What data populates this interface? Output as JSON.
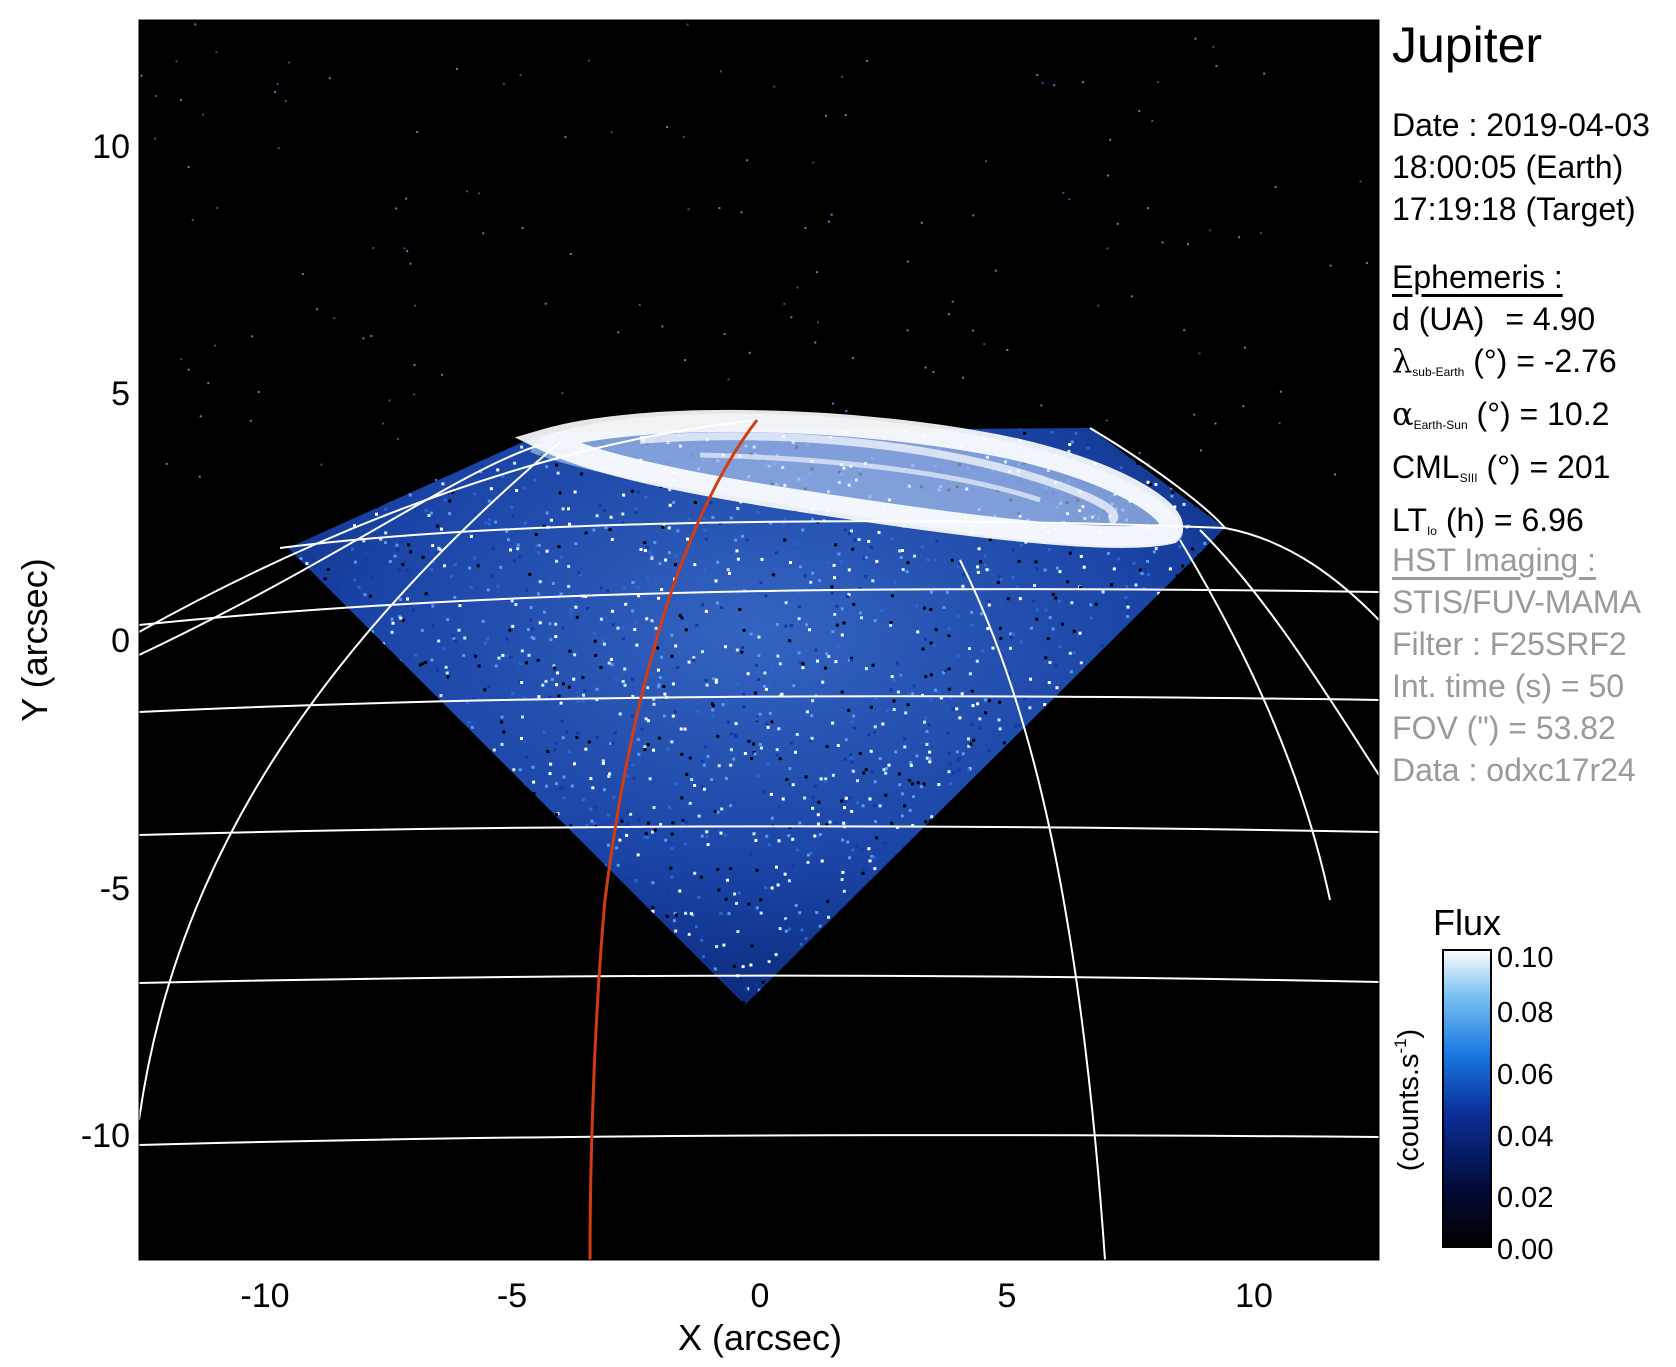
{
  "header": {
    "title": "Jupiter"
  },
  "date": {
    "line1": "Date : 2019-04-03",
    "line2": "18:00:05 (Earth)",
    "line3": "17:19:18 (Target)"
  },
  "ephemeris": {
    "heading": "Ephemeris :",
    "d_label": "d (UA)",
    "d_value": "= 4.90",
    "lat_symbol": "λ",
    "lat_sub": "sub-Earth",
    "lat_value": "(°) = -2.76",
    "alpha_symbol": "α",
    "alpha_sub": "Earth-Sun",
    "alpha_value": "(°) = 10.2",
    "cml_label": "CML",
    "cml_sub": "SIII",
    "cml_value": "(°) = 201",
    "lt_label": "LT",
    "lt_sub": "Io",
    "lt_value": "(h) = 6.96"
  },
  "imaging": {
    "heading": "HST Imaging :",
    "instrument": "STIS/FUV-MAMA",
    "filter": "Filter : F25SRF2",
    "int_time": "Int. time (s) = 50",
    "fov": "FOV (\") = 53.82",
    "dataset": "Data : odxc17r24"
  },
  "axes": {
    "x_label": "X (arcsec)",
    "y_label": "Y (arcsec)",
    "x_ticks": [
      "-10",
      "-5",
      "0",
      "5",
      "10"
    ],
    "y_ticks": [
      "10",
      "5",
      "0",
      "-5",
      "-10"
    ]
  },
  "colorbar": {
    "title": "Flux",
    "unit_label": "(counts.s",
    "unit_exp": "-1",
    "unit_close": ")",
    "ticks": [
      "0.10",
      "0.08",
      "0.06",
      "0.04",
      "0.02",
      "0.00"
    ]
  },
  "colors": {
    "background": "#000000",
    "grid": "#ffffff",
    "meridian": "#d23c12",
    "emission_dark": "#05103a",
    "emission_mid": "#1d4bb8",
    "emission_bright": "#ffffff"
  }
}
